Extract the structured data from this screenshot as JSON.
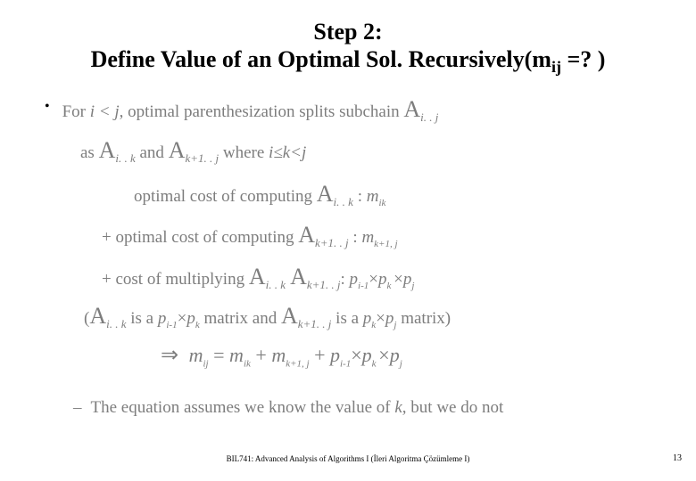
{
  "title": {
    "line1": "Step 2:",
    "line2_a": "Define Value of an Optimal Sol. Recursively(m",
    "line2_sub": "ij",
    "line2_b": " =? )"
  },
  "lines": {
    "l1a": "For ",
    "l1_ij": "i < j",
    "l1b": ", optimal parenthesization splits subchain ",
    "l1_A": "A",
    "l1_Asub": "i. . j",
    "l2a": "as ",
    "l2_A1": "A",
    "l2_A1sub": "i. . k",
    "l2b": " and ",
    "l2_A2": "A",
    "l2_A2sub": "k+1. . j",
    "l2c": " where ",
    "l2_cond": "i≤k<j",
    "l3a": "optimal cost of computing ",
    "l3_A": "A",
    "l3_Asub": "i. . k",
    "l3b": " : ",
    "l3_m": "m",
    "l3_msub": "ik",
    "l4a": "+ optimal cost of computing ",
    "l4_A": "A",
    "l4_Asub": "k+1. . j",
    "l4b": " : ",
    "l4_m": "m",
    "l4_msub": "k+1, j",
    "l5a": "+ cost of multiplying ",
    "l5_A1": "A",
    "l5_A1sub": "i. . k",
    "l5_A2": " A",
    "l5_A2sub": "k+1. . j",
    "l5b": ": ",
    "l5_p": "p",
    "l5_p1sub": "i-1",
    "l5_x1": "×",
    "l5_p2": "p",
    "l5_p2sub": "k ",
    "l5_x2": "×",
    "l5_p3": "p",
    "l5_p3sub": "j",
    "l6a": "(",
    "l6_A1": "A",
    "l6_A1sub": "i. . k",
    "l6b": " is a ",
    "l6_p1": "p",
    "l6_p1sub": "i-1",
    "l6_x1": "×",
    "l6_p2": "p",
    "l6_p2sub": "k",
    "l6c": " matrix and ",
    "l6_A2": "A",
    "l6_A2sub": "k+1. . j",
    "l6d": " is a ",
    "l6_p3": "p",
    "l6_p3sub": "k",
    "l6_x2": "×",
    "l6_p4": "p",
    "l6_p4sub": "j",
    "l6e": " matrix)",
    "l7_arrow": "⇒",
    "l7_m1": " m",
    "l7_m1sub": "ij",
    "l7_eq": " = ",
    "l7_m2": "m",
    "l7_m2sub": "ik",
    "l7_plus1": " + ",
    "l7_m3": "m",
    "l7_m3sub": "k+1, j",
    "l7_plus2": " + ",
    "l7_p1": "p",
    "l7_p1sub": "i-1",
    "l7_x1": "×",
    "l7_p2": "p",
    "l7_p2sub": "k ",
    "l7_x2": "×",
    "l7_p3": "p",
    "l7_p3sub": "j",
    "l8a": "The equation assumes we know the value of ",
    "l8_k": "k",
    "l8b": ", but we do not"
  },
  "footer": "BIL741: Advanced Analysis of Algorithms I (İleri Algoritma Çözümleme I)",
  "pagenum": "13"
}
